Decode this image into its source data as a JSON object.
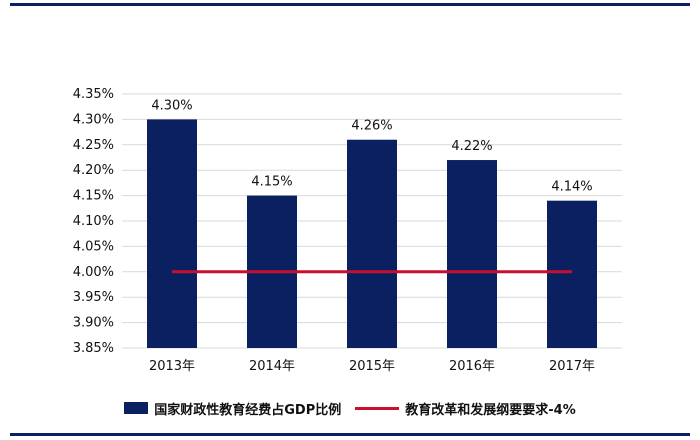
{
  "chart_data": {
    "type": "bar",
    "categories": [
      "2013年",
      "2014年",
      "2015年",
      "2016年",
      "2017年"
    ],
    "series": [
      {
        "name": "国家财政性教育经费占GDP比例",
        "values": [
          4.3,
          4.15,
          4.26,
          4.22,
          4.14
        ],
        "color": "#0a2060"
      },
      {
        "name": "教育改革和发展纲要要求-4%",
        "type": "line",
        "values": [
          4.0,
          4.0,
          4.0,
          4.0,
          4.0
        ],
        "color": "#c8102e"
      }
    ],
    "data_labels": [
      "4.30%",
      "4.15%",
      "4.26%",
      "4.22%",
      "4.14%"
    ],
    "yticks": [
      "3.85%",
      "3.90%",
      "3.95%",
      "4.00%",
      "4.05%",
      "4.10%",
      "4.15%",
      "4.20%",
      "4.25%",
      "4.30%",
      "4.35%"
    ],
    "ylim": [
      3.85,
      4.35
    ],
    "grid": true,
    "legend": "bottom"
  },
  "frame_color": "#0a2060"
}
